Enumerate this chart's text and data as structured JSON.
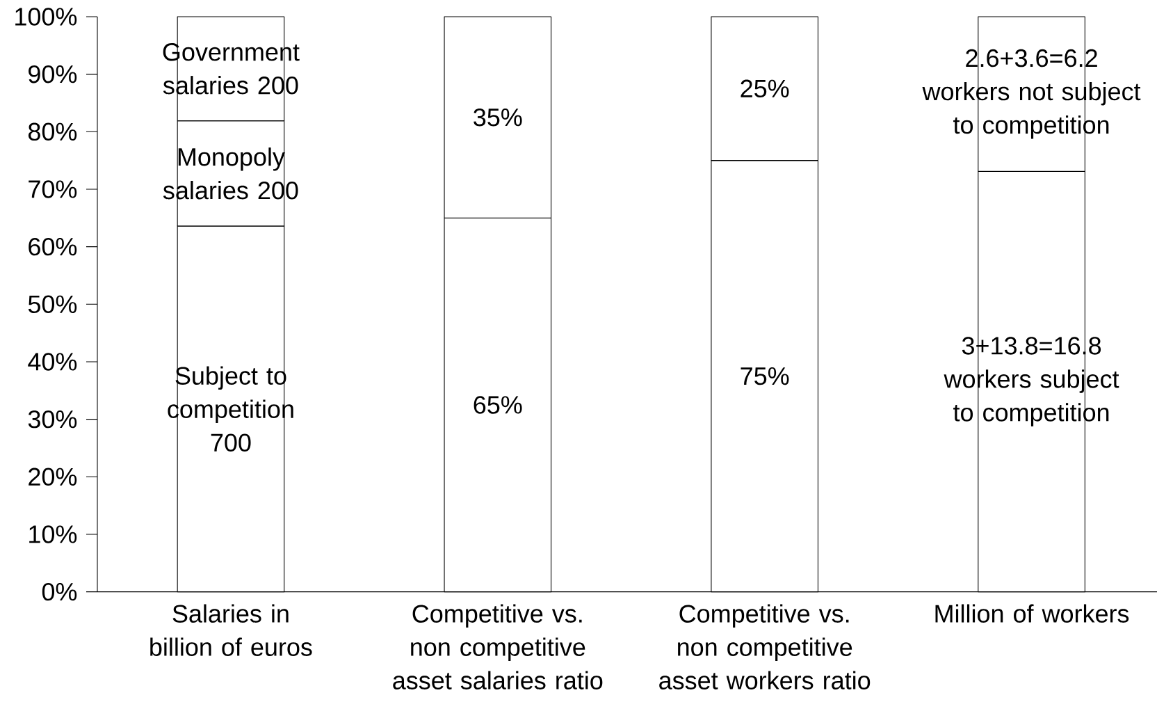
{
  "chart_data": {
    "type": "bar",
    "stacked": true,
    "categories": [
      "Salaries in billion of euros",
      "Competitive vs. non competitive asset salaries ratio",
      "Competitive vs. non competitive asset workers ratio",
      "Million of workers"
    ],
    "series": [
      {
        "color": "#ffffff",
        "values": [
          63.6,
          65,
          75,
          73.1
        ],
        "value_labels": [
          "Subject to competition 700",
          "65%",
          "75%",
          null
        ]
      },
      {
        "color": "#ffffff",
        "values": [
          18.3,
          null,
          null,
          null
        ],
        "value_labels": [
          "Monopoly salaries 200",
          null,
          null,
          null
        ]
      },
      {
        "color": "#ffffff",
        "values": [
          18.1,
          35,
          25,
          26.9
        ],
        "value_labels": [
          "Government salaries 200",
          "35%",
          "25%",
          null
        ]
      }
    ],
    "annotations": [
      "3+13.8=16.8 workers subject to competition",
      "2.6+3.6=6.2 workers not subject to competition"
    ],
    "ylim": [
      0,
      100
    ],
    "yticks": [
      {
        "value": 0,
        "label": "0%"
      },
      {
        "value": 10,
        "label": "10%"
      },
      {
        "value": 20,
        "label": "20%"
      },
      {
        "value": 30,
        "label": "30%"
      },
      {
        "value": 40,
        "label": "40%"
      },
      {
        "value": 50,
        "label": "50%"
      },
      {
        "value": 60,
        "label": "60%"
      },
      {
        "value": 70,
        "label": "70%"
      },
      {
        "value": 80,
        "label": "80%"
      },
      {
        "value": 90,
        "label": "90%"
      },
      {
        "value": 100,
        "label": "100%"
      }
    ],
    "grid": false
  }
}
